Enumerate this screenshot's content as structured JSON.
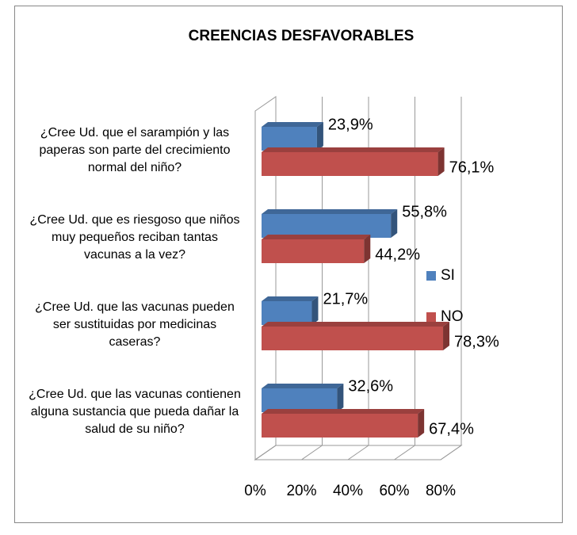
{
  "chart_data": {
    "type": "bar3d_horizontal",
    "title": "CREENCIAS DESFAVORABLES",
    "categories": [
      "¿Cree Ud. que el sarampión y las paperas son parte del crecimiento normal del niño?",
      "¿Cree Ud. que es riesgoso que niños muy pequeños reciban tantas vacunas a la vez?",
      "¿Cree Ud. que las vacunas pueden ser sustituidas por medicinas caseras?",
      "¿Cree Ud. que las vacunas contienen alguna sustancia que pueda dañar la salud de su niño?"
    ],
    "series": [
      {
        "name": "SI",
        "color": "#4f81bd",
        "values": [
          23.9,
          55.8,
          21.7,
          32.6
        ],
        "value_labels": [
          "23,9%",
          "55,8%",
          "21,7%",
          "32,6%"
        ]
      },
      {
        "name": "NO",
        "color": "#c0504d",
        "values": [
          76.1,
          44.2,
          78.3,
          67.4
        ],
        "value_labels": [
          "76,1%",
          "44,2%",
          "78,3%",
          "67,4%"
        ]
      }
    ],
    "xlim": [
      0,
      80
    ],
    "xticks": [
      {
        "value": 0,
        "label": "0%"
      },
      {
        "value": 20,
        "label": "20%"
      },
      {
        "value": 40,
        "label": "40%"
      },
      {
        "value": 60,
        "label": "60%"
      },
      {
        "value": 80,
        "label": "80%"
      }
    ],
    "grid": true,
    "legend": "right"
  }
}
